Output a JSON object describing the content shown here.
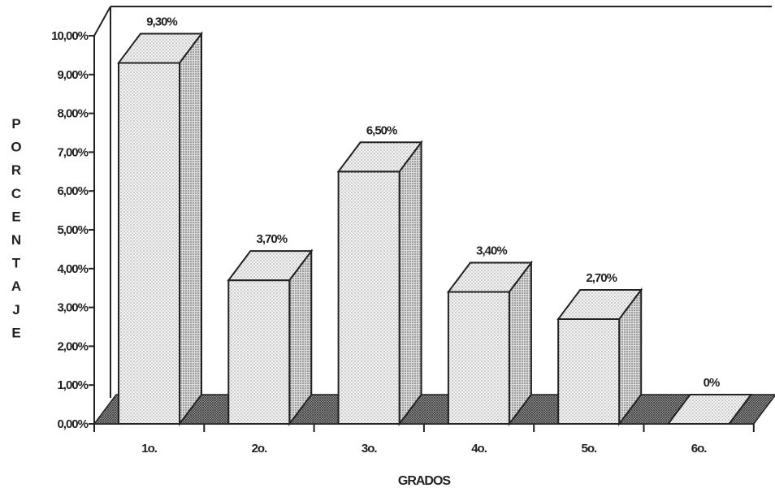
{
  "chart_data": {
    "type": "bar",
    "categories": [
      "1o.",
      "2o.",
      "3o.",
      "4o.",
      "5o.",
      "6o."
    ],
    "values": [
      9.3,
      3.7,
      6.5,
      3.4,
      2.7,
      0
    ],
    "data_labels": [
      "9,30%",
      "3,70%",
      "6,50%",
      "3,40%",
      "2,70%",
      "0%"
    ],
    "y_ticks": [
      "0,00%",
      "1,00%",
      "2,00%",
      "3,00%",
      "4,00%",
      "5,00%",
      "6,00%",
      "7,00%",
      "8,00%",
      "9,00%",
      "10,00%"
    ],
    "ylim": [
      0,
      10
    ],
    "xlabel": "GRADOS",
    "ylabel": "PORCENTAJE",
    "ylabel_letters": [
      "P",
      "O",
      "R",
      "C",
      "E",
      "N",
      "T",
      "A",
      "J",
      "E"
    ],
    "grid": false,
    "three_d": true,
    "colors": {
      "bar": "#e9e9e9",
      "floor": "#6e6e6e",
      "outline": "#222222",
      "text": "#222222"
    }
  }
}
